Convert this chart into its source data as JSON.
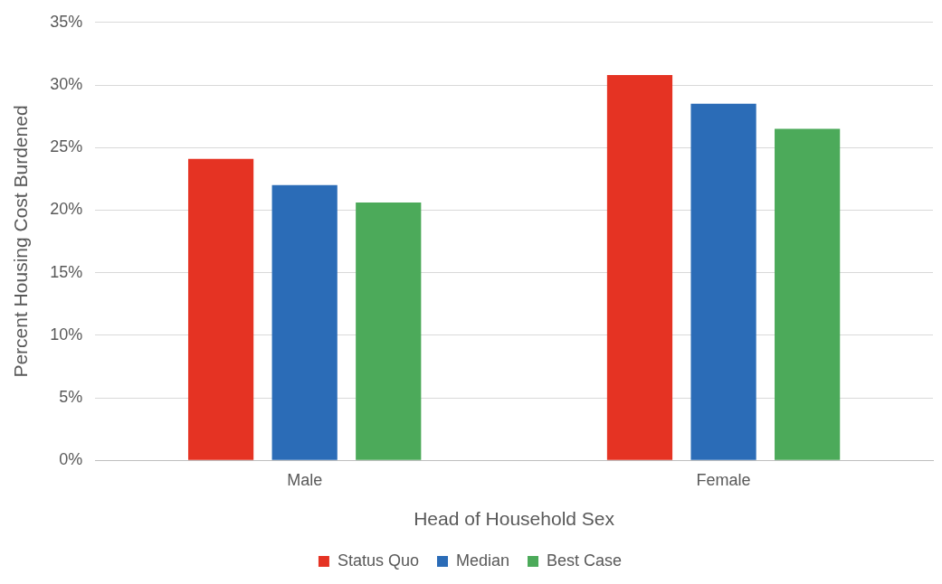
{
  "chart_data": {
    "type": "bar",
    "xlabel": "Head of Household Sex",
    "ylabel": "Percent Housing Cost Burdened",
    "categories": [
      "Male",
      "Female"
    ],
    "series": [
      {
        "name": "Status Quo",
        "color": "#e53323",
        "values": [
          24.1,
          30.8
        ]
      },
      {
        "name": "Median",
        "color": "#2b6cb7",
        "values": [
          22.0,
          28.5
        ]
      },
      {
        "name": "Best Case",
        "color": "#4caa5a",
        "values": [
          20.6,
          26.5
        ]
      }
    ],
    "ylim": [
      0,
      35
    ],
    "yticks": [
      {
        "value": 0,
        "label": "0%"
      },
      {
        "value": 5,
        "label": "5%"
      },
      {
        "value": 10,
        "label": "10%"
      },
      {
        "value": 15,
        "label": "15%"
      },
      {
        "value": 20,
        "label": "20%"
      },
      {
        "value": 25,
        "label": "25%"
      },
      {
        "value": 30,
        "label": "30%"
      },
      {
        "value": 35,
        "label": "35%"
      }
    ],
    "grid": "y",
    "legend": "bottom"
  }
}
